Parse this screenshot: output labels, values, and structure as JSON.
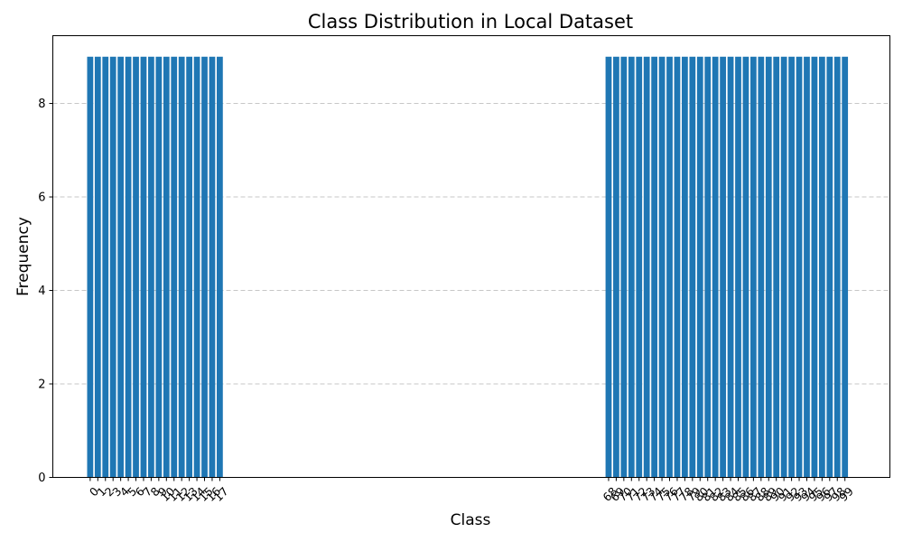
{
  "chart_data": {
    "type": "bar",
    "title": "Class Distribution in Local Dataset",
    "xlabel": "Class",
    "ylabel": "Frequency",
    "categories": [
      "0",
      "1",
      "2",
      "3",
      "4",
      "5",
      "6",
      "7",
      "8",
      "9",
      "10",
      "11",
      "12",
      "13",
      "14",
      "15",
      "16",
      "17",
      "68",
      "69",
      "70",
      "71",
      "72",
      "73",
      "74",
      "75",
      "76",
      "77",
      "78",
      "79",
      "80",
      "81",
      "82",
      "83",
      "84",
      "85",
      "86",
      "87",
      "88",
      "89",
      "90",
      "91",
      "92",
      "93",
      "94",
      "95",
      "96",
      "97",
      "98",
      "99"
    ],
    "values": [
      9,
      9,
      9,
      9,
      9,
      9,
      9,
      9,
      9,
      9,
      9,
      9,
      9,
      9,
      9,
      9,
      9,
      9,
      9,
      9,
      9,
      9,
      9,
      9,
      9,
      9,
      9,
      9,
      9,
      9,
      9,
      9,
      9,
      9,
      9,
      9,
      9,
      9,
      9,
      9,
      9,
      9,
      9,
      9,
      9,
      9,
      9,
      9,
      9,
      9
    ],
    "x_range": [
      -4.9,
      104.9
    ],
    "ylim": [
      0,
      9.45
    ],
    "yticks": [
      0,
      2,
      4,
      6,
      8
    ],
    "grid": "y-dashed",
    "bar_color": "#1f77b4",
    "legend": "none"
  }
}
